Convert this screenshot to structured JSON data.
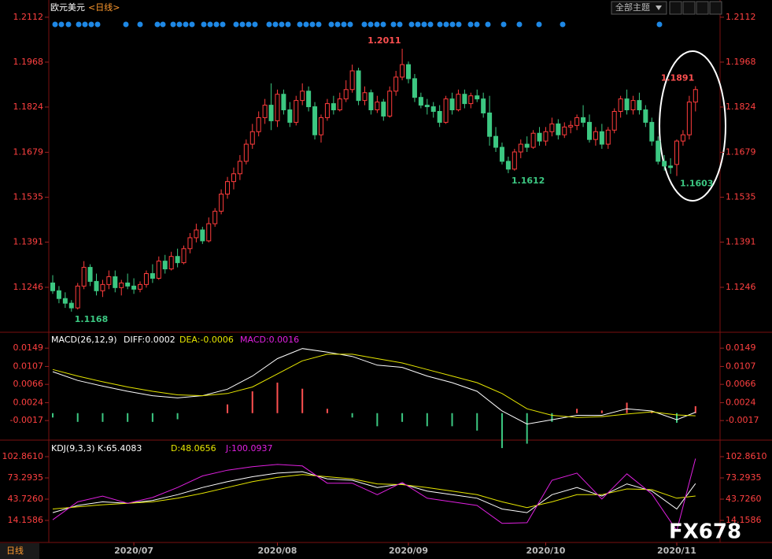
{
  "header": {
    "title": "欧元美元",
    "period": "<日线>",
    "theme_button": "全部主题",
    "period_tab": "日线",
    "watermark": "FX678"
  },
  "chart_data": [
    {
      "type": "candlestick",
      "up_color": "#ff3c3c",
      "down_color": "#3cc882",
      "ylim": [
        1.1107,
        1.2147
      ],
      "yticks": [
        1.2112,
        1.1968,
        1.1824,
        1.1679,
        1.1535,
        1.1391,
        1.1246
      ],
      "xticks": [
        {
          "value": 13,
          "label": "2020/07"
        },
        {
          "value": 36,
          "label": "2020/08"
        },
        {
          "value": 57,
          "label": "2020/09"
        },
        {
          "value": 79,
          "label": "2020/10"
        },
        {
          "value": 100,
          "label": "2020/11"
        }
      ],
      "candles": [
        [
          1.126,
          1.1285,
          1.1225,
          1.1235
        ],
        [
          1.1235,
          1.125,
          1.1195,
          1.121
        ],
        [
          1.121,
          1.123,
          1.118,
          1.1195
        ],
        [
          1.1195,
          1.1205,
          1.1168,
          1.118
        ],
        [
          1.118,
          1.126,
          1.1175,
          1.125
        ],
        [
          1.125,
          1.133,
          1.124,
          1.131
        ],
        [
          1.131,
          1.132,
          1.125,
          1.1265
        ],
        [
          1.1265,
          1.129,
          1.122,
          1.1235
        ],
        [
          1.1235,
          1.127,
          1.1215,
          1.1255
        ],
        [
          1.1255,
          1.13,
          1.124,
          1.128
        ],
        [
          1.128,
          1.13,
          1.123,
          1.1245
        ],
        [
          1.1245,
          1.127,
          1.122,
          1.126
        ],
        [
          1.126,
          1.129,
          1.124,
          1.125
        ],
        [
          1.125,
          1.1275,
          1.1225,
          1.124
        ],
        [
          1.124,
          1.1265,
          1.123,
          1.1255
        ],
        [
          1.1255,
          1.13,
          1.1245,
          1.129
        ],
        [
          1.129,
          1.132,
          1.126,
          1.1275
        ],
        [
          1.1275,
          1.1345,
          1.127,
          1.133
        ],
        [
          1.133,
          1.135,
          1.129,
          1.1305
        ],
        [
          1.1305,
          1.136,
          1.13,
          1.1345
        ],
        [
          1.1345,
          1.137,
          1.131,
          1.1325
        ],
        [
          1.1325,
          1.138,
          1.132,
          1.137
        ],
        [
          1.137,
          1.142,
          1.1355,
          1.1405
        ],
        [
          1.1405,
          1.145,
          1.139,
          1.143
        ],
        [
          1.143,
          1.144,
          1.1385,
          1.1395
        ],
        [
          1.1395,
          1.147,
          1.139,
          1.145
        ],
        [
          1.145,
          1.15,
          1.144,
          1.149
        ],
        [
          1.149,
          1.156,
          1.148,
          1.1545
        ],
        [
          1.1545,
          1.16,
          1.153,
          1.1585
        ],
        [
          1.1585,
          1.163,
          1.156,
          1.161
        ],
        [
          1.161,
          1.167,
          1.159,
          1.165
        ],
        [
          1.165,
          1.172,
          1.164,
          1.1705
        ],
        [
          1.1705,
          1.177,
          1.169,
          1.1745
        ],
        [
          1.1745,
          1.181,
          1.173,
          1.179
        ],
        [
          1.179,
          1.185,
          1.177,
          1.183
        ],
        [
          1.183,
          1.19,
          1.175,
          1.178
        ],
        [
          1.178,
          1.188,
          1.176,
          1.1865
        ],
        [
          1.1865,
          1.188,
          1.18,
          1.1815
        ],
        [
          1.1815,
          1.184,
          1.176,
          1.1775
        ],
        [
          1.1775,
          1.186,
          1.1765,
          1.1845
        ],
        [
          1.1845,
          1.19,
          1.183,
          1.1875
        ],
        [
          1.1875,
          1.189,
          1.181,
          1.1825
        ],
        [
          1.1825,
          1.184,
          1.172,
          1.1735
        ],
        [
          1.1735,
          1.18,
          1.171,
          1.179
        ],
        [
          1.179,
          1.185,
          1.178,
          1.1835
        ],
        [
          1.1835,
          1.186,
          1.18,
          1.1815
        ],
        [
          1.1815,
          1.187,
          1.181,
          1.185
        ],
        [
          1.185,
          1.191,
          1.184,
          1.188
        ],
        [
          1.188,
          1.196,
          1.187,
          1.194
        ],
        [
          1.194,
          1.195,
          1.183,
          1.1845
        ],
        [
          1.1845,
          1.189,
          1.183,
          1.187
        ],
        [
          1.187,
          1.188,
          1.18,
          1.1815
        ],
        [
          1.1815,
          1.186,
          1.1805,
          1.184
        ],
        [
          1.184,
          1.185,
          1.178,
          1.1795
        ],
        [
          1.1795,
          1.189,
          1.179,
          1.1875
        ],
        [
          1.1875,
          1.194,
          1.186,
          1.192
        ],
        [
          1.192,
          1.2011,
          1.191,
          1.196
        ],
        [
          1.196,
          1.197,
          1.19,
          1.1915
        ],
        [
          1.1915,
          1.193,
          1.184,
          1.1855
        ],
        [
          1.1855,
          1.187,
          1.182,
          1.183
        ],
        [
          1.183,
          1.185,
          1.18,
          1.1825
        ],
        [
          1.1825,
          1.184,
          1.179,
          1.181
        ],
        [
          1.181,
          1.183,
          1.176,
          1.1775
        ],
        [
          1.1775,
          1.186,
          1.177,
          1.185
        ],
        [
          1.185,
          1.187,
          1.18,
          1.1815
        ],
        [
          1.1815,
          1.188,
          1.181,
          1.1865
        ],
        [
          1.1865,
          1.188,
          1.182,
          1.1835
        ],
        [
          1.1835,
          1.187,
          1.182,
          1.186
        ],
        [
          1.186,
          1.188,
          1.184,
          1.185
        ],
        [
          1.185,
          1.187,
          1.179,
          1.1805
        ],
        [
          1.1805,
          1.186,
          1.17,
          1.173
        ],
        [
          1.173,
          1.176,
          1.168,
          1.1695
        ],
        [
          1.1695,
          1.171,
          1.164,
          1.165
        ],
        [
          1.165,
          1.1665,
          1.1612,
          1.1625
        ],
        [
          1.1625,
          1.169,
          1.162,
          1.168
        ],
        [
          1.168,
          1.172,
          1.166,
          1.1705
        ],
        [
          1.1705,
          1.173,
          1.168,
          1.1695
        ],
        [
          1.1695,
          1.175,
          1.169,
          1.174
        ],
        [
          1.174,
          1.176,
          1.17,
          1.1715
        ],
        [
          1.1715,
          1.176,
          1.17,
          1.1745
        ],
        [
          1.1745,
          1.179,
          1.173,
          1.177
        ],
        [
          1.177,
          1.1785,
          1.172,
          1.1735
        ],
        [
          1.1735,
          1.1775,
          1.1725,
          1.176
        ],
        [
          1.176,
          1.178,
          1.174,
          1.1765
        ],
        [
          1.1765,
          1.18,
          1.175,
          1.179
        ],
        [
          1.179,
          1.183,
          1.176,
          1.1775
        ],
        [
          1.1775,
          1.18,
          1.171,
          1.172
        ],
        [
          1.172,
          1.176,
          1.17,
          1.1745
        ],
        [
          1.1745,
          1.177,
          1.169,
          1.1705
        ],
        [
          1.1705,
          1.176,
          1.169,
          1.175
        ],
        [
          1.175,
          1.182,
          1.174,
          1.181
        ],
        [
          1.181,
          1.186,
          1.179,
          1.185
        ],
        [
          1.185,
          1.188,
          1.18,
          1.1815
        ],
        [
          1.1815,
          1.186,
          1.18,
          1.1845
        ],
        [
          1.1845,
          1.187,
          1.18,
          1.1815
        ],
        [
          1.1815,
          1.183,
          1.176,
          1.1775
        ],
        [
          1.1775,
          1.179,
          1.17,
          1.1715
        ],
        [
          1.1715,
          1.173,
          1.164,
          1.165
        ],
        [
          1.165,
          1.167,
          1.162,
          1.1635
        ],
        [
          1.1635,
          1.166,
          1.161,
          1.163
        ],
        [
          1.164,
          1.172,
          1.1603,
          1.1715
        ],
        [
          1.1715,
          1.175,
          1.17,
          1.1735
        ],
        [
          1.1735,
          1.186,
          1.172,
          1.184
        ],
        [
          1.184,
          1.1891,
          1.181,
          1.188
        ]
      ]
    },
    {
      "type": "macd",
      "title": "MACD(26,12,9)",
      "ylim": [
        -0.006,
        0.018
      ],
      "yticks": [
        0.0149,
        0.0107,
        0.0066,
        0.0024,
        -0.0017
      ],
      "x": [
        0,
        4,
        8,
        12,
        16,
        20,
        24,
        28,
        32,
        36,
        40,
        44,
        48,
        52,
        56,
        60,
        64,
        68,
        72,
        76,
        80,
        84,
        88,
        92,
        96,
        100,
        103
      ],
      "series": [
        {
          "name": "DIFF:0.0002",
          "color": "#ffffff",
          "values": [
            0.0095,
            0.0075,
            0.0062,
            0.005,
            0.004,
            0.0035,
            0.004,
            0.0055,
            0.0085,
            0.0125,
            0.0148,
            0.014,
            0.013,
            0.011,
            0.0105,
            0.0085,
            0.007,
            0.005,
            0.0005,
            -0.0025,
            -0.0015,
            -0.0005,
            -0.0005,
            0.001,
            0.0005,
            -0.0015,
            0.0002
          ]
        },
        {
          "name": "DEA:-0.0006",
          "color": "#e6e600",
          "values": [
            0.01,
            0.0085,
            0.0072,
            0.006,
            0.005,
            0.0042,
            0.004,
            0.0045,
            0.006,
            0.009,
            0.012,
            0.0135,
            0.0135,
            0.0125,
            0.0115,
            0.01,
            0.0085,
            0.007,
            0.0045,
            0.001,
            -0.0005,
            -0.001,
            -0.0008,
            -0.0002,
            0.0003,
            -0.0004,
            -0.0006
          ]
        },
        {
          "name": "MACD:0.0016",
          "color": "#e020e0",
          "up_color": "#ff5050",
          "down_color": "#3cc882",
          "values": [
            -0.001,
            -0.002,
            -0.002,
            -0.002,
            -0.002,
            -0.0014,
            0,
            0.002,
            0.005,
            0.007,
            0.0056,
            0.001,
            -0.001,
            -0.003,
            -0.002,
            -0.003,
            -0.003,
            -0.004,
            -0.008,
            -0.007,
            -0.002,
            0.001,
            0.0006,
            0.0024,
            0.0004,
            -0.0022,
            0.0016
          ]
        }
      ]
    },
    {
      "type": "kdj",
      "title": "KDJ(9,3,3)",
      "ylim": [
        -17.6,
        121.5
      ],
      "yticks": [
        {
          "value": 102.861,
          "label": "102.8610"
        },
        73.2935,
        {
          "value": 43.726,
          "label": "43.7260"
        },
        14.1586
      ],
      "x": [
        0,
        4,
        8,
        12,
        16,
        20,
        24,
        28,
        32,
        36,
        40,
        44,
        48,
        52,
        56,
        60,
        64,
        68,
        72,
        76,
        80,
        84,
        88,
        92,
        96,
        100,
        103
      ],
      "series": [
        {
          "name": "K:65.4083",
          "color": "#ffffff",
          "values": [
            25,
            35,
            40,
            38,
            42,
            50,
            60,
            68,
            75,
            80,
            82,
            72,
            70,
            60,
            65,
            55,
            50,
            45,
            30,
            25,
            50,
            60,
            48,
            65,
            55,
            30,
            65.4083
          ]
        },
        {
          "name": "D:48.0656",
          "color": "#e6e600",
          "values": [
            30,
            33,
            36,
            38,
            40,
            45,
            52,
            60,
            68,
            74,
            78,
            75,
            72,
            65,
            64,
            60,
            55,
            50,
            40,
            32,
            40,
            50,
            50,
            58,
            57,
            45,
            48.0656
          ]
        },
        {
          "name": "J:100.0937",
          "color": "#e020e0",
          "values": [
            15,
            40,
            48,
            38,
            46,
            60,
            76,
            84,
            89,
            92,
            90,
            66,
            66,
            50,
            67,
            45,
            40,
            35,
            10,
            11,
            70,
            80,
            44,
            79,
            51,
            0,
            100.0937
          ]
        }
      ]
    }
  ]
}
